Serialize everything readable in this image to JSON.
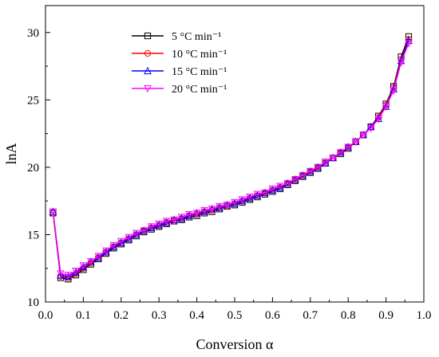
{
  "chart_data": {
    "type": "line",
    "xlabel": "Conversion α",
    "ylabel": "lnA",
    "xlim": [
      0.0,
      1.0
    ],
    "ylim": [
      10,
      32
    ],
    "x_ticks": [
      "0.0",
      "0.1",
      "0.2",
      "0.3",
      "0.4",
      "0.5",
      "0.6",
      "0.7",
      "0.8",
      "0.9",
      "1.0"
    ],
    "y_ticks": [
      "10",
      "15",
      "20",
      "25",
      "30"
    ],
    "grid": false,
    "legend_position": "top-left",
    "x": [
      0.02,
      0.04,
      0.06,
      0.08,
      0.1,
      0.12,
      0.14,
      0.16,
      0.18,
      0.2,
      0.22,
      0.24,
      0.26,
      0.28,
      0.3,
      0.32,
      0.34,
      0.36,
      0.38,
      0.4,
      0.42,
      0.44,
      0.46,
      0.48,
      0.5,
      0.52,
      0.54,
      0.56,
      0.58,
      0.6,
      0.62,
      0.64,
      0.66,
      0.68,
      0.7,
      0.72,
      0.74,
      0.76,
      0.78,
      0.8,
      0.82,
      0.84,
      0.86,
      0.88,
      0.9,
      0.92,
      0.94,
      0.96
    ],
    "series": [
      {
        "name": "5 °C min⁻¹",
        "color": "#000000",
        "marker": "square",
        "values": [
          16.6,
          11.8,
          11.7,
          12.0,
          12.4,
          12.8,
          13.2,
          13.6,
          14.0,
          14.3,
          14.6,
          14.9,
          15.2,
          15.4,
          15.6,
          15.8,
          16.0,
          16.1,
          16.3,
          16.4,
          16.6,
          16.7,
          16.9,
          17.1,
          17.2,
          17.4,
          17.6,
          17.8,
          18.0,
          18.2,
          18.4,
          18.7,
          19.0,
          19.3,
          19.6,
          19.9,
          20.3,
          20.7,
          21.0,
          21.4,
          21.9,
          22.4,
          23.0,
          23.8,
          24.7,
          26.0,
          28.2,
          29.7
        ]
      },
      {
        "name": "10 °C min⁻¹",
        "color": "#ff0000",
        "marker": "circle",
        "values": [
          16.6,
          11.9,
          11.8,
          12.1,
          12.5,
          12.9,
          13.3,
          13.7,
          14.1,
          14.4,
          14.7,
          15.0,
          15.3,
          15.5,
          15.7,
          15.9,
          16.0,
          16.2,
          16.4,
          16.5,
          16.7,
          16.8,
          17.0,
          17.1,
          17.3,
          17.5,
          17.7,
          17.9,
          18.1,
          18.3,
          18.5,
          18.8,
          19.1,
          19.4,
          19.7,
          20.0,
          20.3,
          20.7,
          21.1,
          21.5,
          21.9,
          22.4,
          23.0,
          23.7,
          24.6,
          25.9,
          28.0,
          29.5
        ]
      },
      {
        "name": "15 °C min⁻¹",
        "color": "#0000ff",
        "marker": "triangle-up",
        "values": [
          16.7,
          12.0,
          11.9,
          12.2,
          12.6,
          13.0,
          13.3,
          13.7,
          14.1,
          14.4,
          14.7,
          15.0,
          15.3,
          15.5,
          15.7,
          15.9,
          16.1,
          16.2,
          16.4,
          16.6,
          16.7,
          16.9,
          17.0,
          17.2,
          17.3,
          17.5,
          17.7,
          17.9,
          18.1,
          18.3,
          18.5,
          18.8,
          19.1,
          19.4,
          19.7,
          20.0,
          20.3,
          20.7,
          21.1,
          21.5,
          21.9,
          22.4,
          23.0,
          23.6,
          24.5,
          25.8,
          27.9,
          29.4
        ]
      },
      {
        "name": "20 °C min⁻¹",
        "color": "#ff00ff",
        "marker": "triangle-down",
        "values": [
          16.7,
          12.1,
          12.0,
          12.3,
          12.7,
          13.0,
          13.4,
          13.8,
          14.2,
          14.5,
          14.8,
          15.1,
          15.3,
          15.6,
          15.8,
          16.0,
          16.1,
          16.3,
          16.5,
          16.6,
          16.8,
          16.9,
          17.1,
          17.2,
          17.4,
          17.6,
          17.8,
          18.0,
          18.1,
          18.4,
          18.6,
          18.8,
          19.1,
          19.4,
          19.7,
          20.0,
          20.4,
          20.7,
          21.1,
          21.5,
          21.9,
          22.4,
          22.9,
          23.6,
          24.5,
          25.7,
          27.8,
          29.2
        ]
      }
    ]
  }
}
